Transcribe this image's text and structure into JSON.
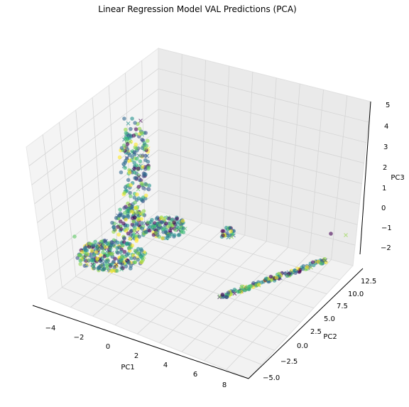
{
  "chart_data": {
    "type": "scatter",
    "projection": "3d",
    "title": "Linear Regression Model VAL Predictions (PCA)",
    "xlabel": "PC1",
    "ylabel": "PC2",
    "zlabel": "PC3",
    "xlim": [
      -5,
      9
    ],
    "ylim": [
      -6,
      14
    ],
    "zlim": [
      -2.6,
      5.2
    ],
    "x_ticks": [
      "−4",
      "−2",
      "0",
      "2",
      "4",
      "6",
      "8"
    ],
    "y_ticks": [
      "−5.0",
      "−2.5",
      "0.0",
      "2.5",
      "5.0",
      "7.5",
      "10.0",
      "12.5"
    ],
    "z_ticks": [
      "−2",
      "−1",
      "0",
      "1",
      "2",
      "3",
      "4",
      "5"
    ],
    "grid": true,
    "colormap": "viridis",
    "markers": [
      "circle",
      "x"
    ],
    "clusters": [
      {
        "name": "left-vertical",
        "x_range": [
          -4.5,
          -2.5
        ],
        "y_range": [
          0,
          4
        ],
        "z_range": [
          -0.5,
          4.5
        ]
      },
      {
        "name": "left-bottom",
        "x_range": [
          -4.5,
          0
        ],
        "y_range": [
          -2,
          3
        ],
        "z_range": [
          -2.5,
          -0.5
        ]
      },
      {
        "name": "middle-group",
        "x_range": [
          0,
          4
        ],
        "y_range": [
          4,
          8
        ],
        "z_range": [
          -1.5,
          0
        ]
      },
      {
        "name": "right-diagonal",
        "x_range": [
          5,
          9
        ],
        "y_range": [
          -4,
          12
        ],
        "z_range": [
          -2,
          -1.5
        ]
      }
    ]
  }
}
